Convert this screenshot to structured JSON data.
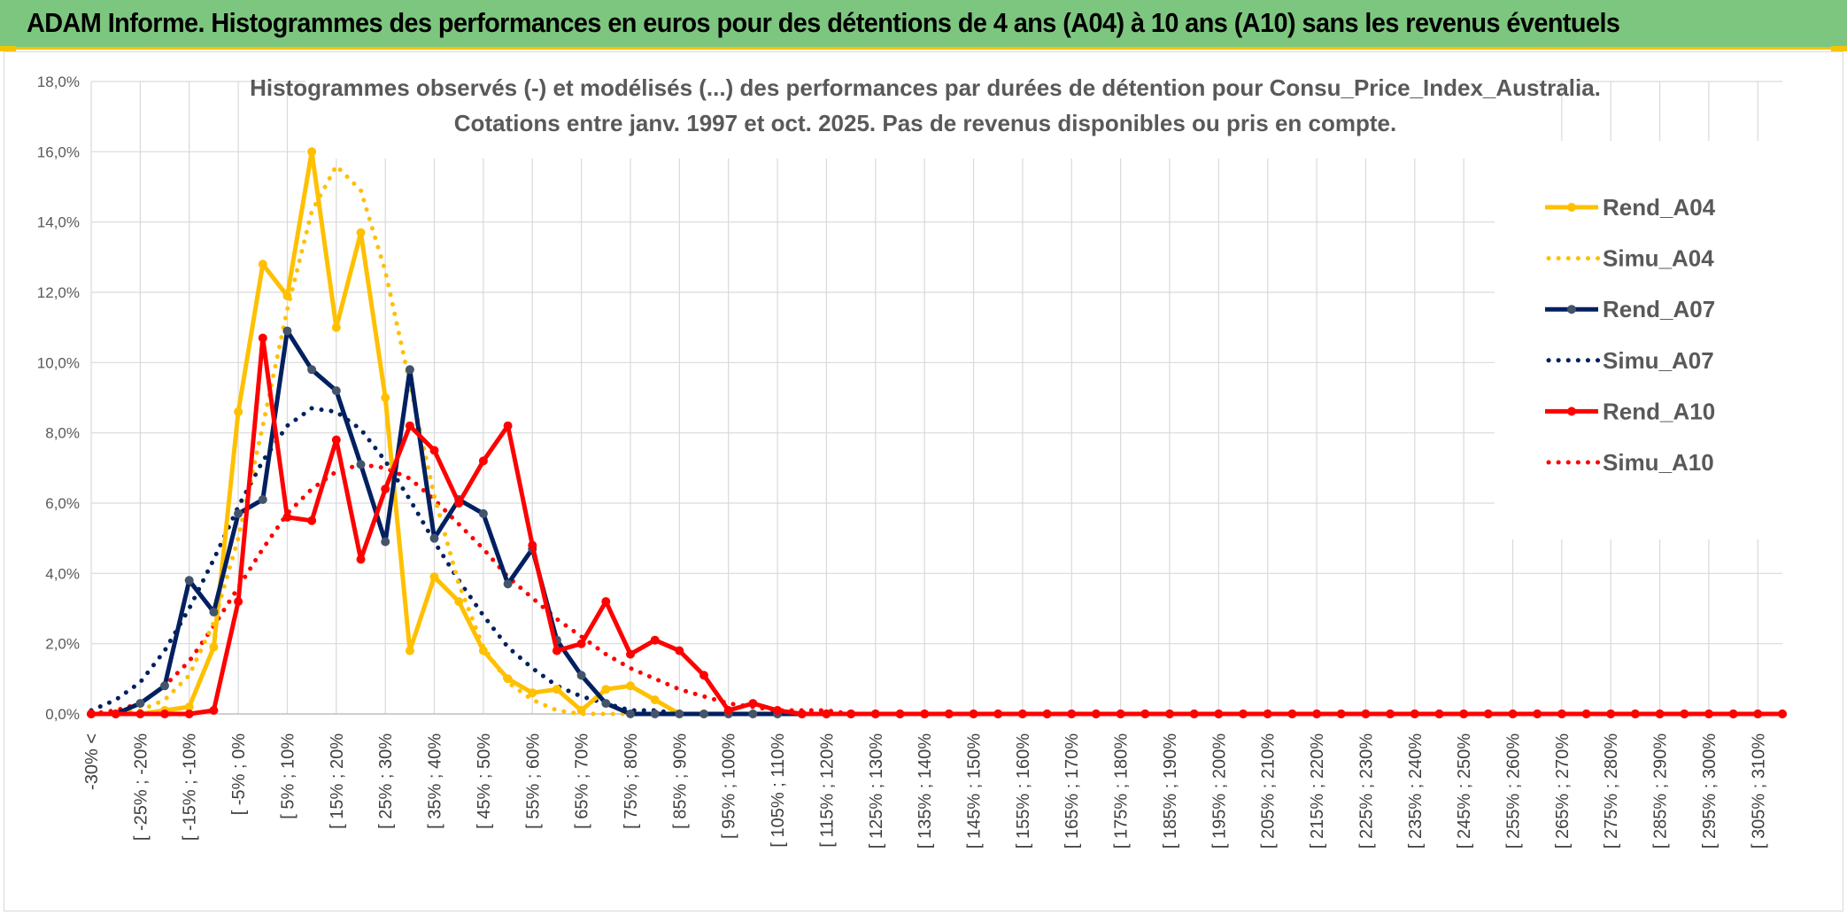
{
  "header": {
    "title": "ADAM Informe. Histogrammes des performances en euros pour des détentions de 4 ans (A04) à 10 ans (A10) sans les revenus éventuels"
  },
  "chart_data": {
    "type": "line",
    "title": [
      "Histogrammes observés (-) et modélisés (...) des performances par durées de détention pour Consu_Price_Index_Australia.",
      "Cotations entre janv. 1997 et oct. 2025. Pas de revenus disponibles ou pris en compte."
    ],
    "xlabel": "",
    "ylabel": "",
    "ylim": [
      0,
      18
    ],
    "yticks": [
      "0,0%",
      "2,0%",
      "4,0%",
      "6,0%",
      "8,0%",
      "10,0%",
      "12,0%",
      "14,0%",
      "16,0%",
      "18,0%"
    ],
    "grid": true,
    "legend_position": "right",
    "colors": {
      "A04": "#ffc000",
      "A07": "#002060",
      "A10": "#ff0000",
      "A07_marker": "#44546a",
      "header_bg": "#7dc67f",
      "header_border": "#f5c400"
    },
    "x_labels": [
      "-30% <",
      "[ -25% ; -20%",
      "[ -15% ; -10%",
      "[ -5% ; 0%",
      "[ 5% ; 10%",
      "[ 15% ; 20%",
      "[ 25% ; 30%",
      "[ 35% ; 40%",
      "[ 45% ; 50%",
      "[ 55% ; 60%",
      "[ 65% ; 70%",
      "[ 75% ; 80%",
      "[ 85% ; 90%",
      "[ 95% ; 100%",
      "[ 105% ; 110%",
      "[ 115% ; 120%",
      "[ 125% ; 130%",
      "[ 135% ; 140%",
      "[ 145% ; 150%",
      "[ 155% ; 160%",
      "[ 165% ; 170%",
      "[ 175% ; 180%",
      "[ 185% ; 190%",
      "[ 195% ; 200%",
      "[ 205% ; 210%",
      "[ 215% ; 220%",
      "[ 225% ; 230%",
      "[ 235% ; 240%",
      "[ 245% ; 250%",
      "[ 255% ; 260%",
      "[ 265% ; 270%",
      "[ 275% ; 280%",
      "[ 285% ; 290%",
      "[ 295% ; 300%",
      "[ 305% ; 310%"
    ],
    "num_points": 70,
    "series": [
      {
        "name": "Rend_A04",
        "style": "solid",
        "color": "#ffc000",
        "values": [
          0,
          0,
          0,
          0.1,
          0.2,
          1.9,
          8.6,
          12.8,
          11.9,
          16.0,
          11.0,
          13.7,
          9.0,
          1.8,
          3.9,
          3.2,
          1.8,
          1.0,
          0.6,
          0.7,
          0.1,
          0.7,
          0.8,
          0.4,
          0,
          0,
          0,
          0,
          0,
          0,
          0,
          0,
          0,
          0,
          0,
          0,
          0,
          0,
          0,
          0,
          0,
          0,
          0,
          0,
          0,
          0,
          0,
          0,
          0,
          0,
          0,
          0,
          0,
          0,
          0,
          0,
          0,
          0,
          0,
          0,
          0,
          0,
          0,
          0,
          0,
          0,
          0,
          0,
          0,
          0
        ]
      },
      {
        "name": "Simu_A04",
        "style": "dotted",
        "color": "#ffc000",
        "values": [
          0,
          0,
          0.1,
          0.4,
          1.1,
          2.6,
          5.0,
          8.2,
          11.5,
          14.3,
          15.6,
          14.9,
          12.6,
          9.4,
          6.2,
          3.7,
          1.9,
          0.9,
          0.4,
          0.1,
          0,
          0,
          0,
          0,
          0,
          0,
          0,
          0,
          0,
          0,
          0,
          0,
          0,
          0,
          0,
          0,
          0,
          0,
          0,
          0,
          0,
          0,
          0,
          0,
          0,
          0,
          0,
          0,
          0,
          0,
          0,
          0,
          0,
          0,
          0,
          0,
          0,
          0,
          0,
          0,
          0,
          0,
          0,
          0,
          0,
          0,
          0,
          0,
          0,
          0
        ]
      },
      {
        "name": "Rend_A07",
        "style": "solid",
        "color": "#002060",
        "values": [
          0,
          0,
          0.3,
          0.8,
          3.8,
          2.9,
          5.7,
          6.1,
          10.9,
          9.8,
          9.2,
          7.1,
          4.9,
          9.8,
          5.0,
          6.1,
          5.7,
          3.7,
          4.7,
          2.1,
          1.1,
          0.3,
          0,
          0,
          0,
          0,
          0,
          0,
          0,
          0,
          0,
          0,
          0,
          0,
          0,
          0,
          0,
          0,
          0,
          0,
          0,
          0,
          0,
          0,
          0,
          0,
          0,
          0,
          0,
          0,
          0,
          0,
          0,
          0,
          0,
          0,
          0,
          0,
          0,
          0,
          0,
          0,
          0,
          0,
          0,
          0,
          0,
          0,
          0,
          0
        ]
      },
      {
        "name": "Simu_A07",
        "style": "dotted",
        "color": "#002060",
        "values": [
          0.1,
          0.4,
          0.9,
          1.8,
          3.0,
          4.4,
          5.9,
          7.2,
          8.2,
          8.7,
          8.6,
          8.1,
          7.2,
          6.1,
          4.9,
          3.8,
          2.8,
          1.9,
          1.3,
          0.8,
          0.5,
          0.3,
          0.1,
          0.1,
          0,
          0,
          0,
          0,
          0,
          0,
          0,
          0,
          0,
          0,
          0,
          0,
          0,
          0,
          0,
          0,
          0,
          0,
          0,
          0,
          0,
          0,
          0,
          0,
          0,
          0,
          0,
          0,
          0,
          0,
          0,
          0,
          0,
          0,
          0,
          0,
          0,
          0,
          0,
          0,
          0,
          0,
          0,
          0,
          0,
          0
        ]
      },
      {
        "name": "Rend_A10",
        "style": "solid",
        "color": "#ff0000",
        "values": [
          0,
          0,
          0,
          0,
          0,
          0.1,
          3.2,
          10.7,
          5.6,
          5.5,
          7.8,
          4.4,
          6.4,
          8.2,
          7.5,
          6.0,
          7.2,
          8.2,
          4.8,
          1.8,
          2.0,
          3.2,
          1.7,
          2.1,
          1.8,
          1.1,
          0.1,
          0.3,
          0.1,
          0,
          0,
          0,
          0,
          0,
          0,
          0,
          0,
          0,
          0,
          0,
          0,
          0,
          0,
          0,
          0,
          0,
          0,
          0,
          0,
          0,
          0,
          0,
          0,
          0,
          0,
          0,
          0,
          0,
          0,
          0,
          0,
          0,
          0,
          0,
          0,
          0,
          0,
          0,
          0,
          0
        ]
      },
      {
        "name": "Simu_A10",
        "style": "dotted",
        "color": "#ff0000",
        "values": [
          0,
          0.1,
          0.3,
          0.8,
          1.5,
          2.5,
          3.6,
          4.7,
          5.7,
          6.4,
          6.9,
          7.1,
          7.0,
          6.7,
          6.1,
          5.4,
          4.7,
          3.9,
          3.3,
          2.7,
          2.2,
          1.7,
          1.3,
          1.0,
          0.7,
          0.5,
          0.3,
          0.2,
          0.1,
          0.1,
          0.1,
          0,
          0,
          0,
          0,
          0,
          0,
          0,
          0,
          0,
          0,
          0,
          0,
          0,
          0,
          0,
          0,
          0,
          0,
          0,
          0,
          0,
          0,
          0,
          0,
          0,
          0,
          0,
          0,
          0,
          0,
          0,
          0,
          0,
          0,
          0,
          0,
          0,
          0,
          0
        ]
      }
    ]
  }
}
